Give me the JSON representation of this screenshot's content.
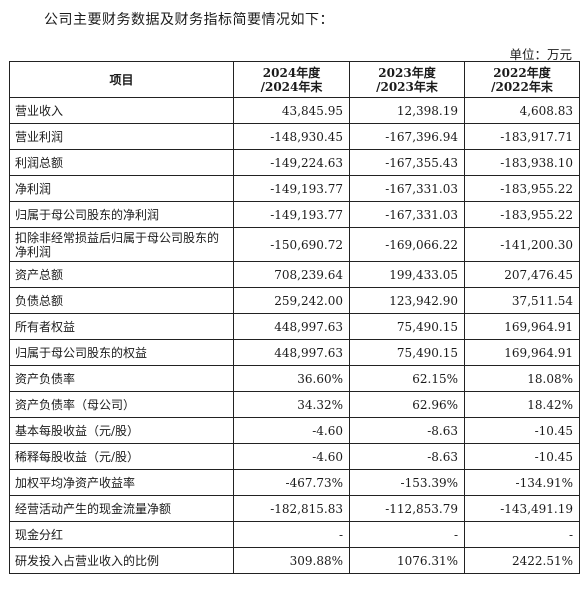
{
  "intro_text": "公司主要财务数据及财务指标简要情况如下：",
  "unit_label": "单位：万元",
  "table": {
    "headers": [
      {
        "line1": "项目",
        "line2": ""
      },
      {
        "line1": "2024年度",
        "line2": "/2024年末"
      },
      {
        "line1": "2023年度",
        "line2": "/2023年末"
      },
      {
        "line1": "2022年度",
        "line2": "/2022年末"
      }
    ],
    "rows": [
      {
        "name": "营业收入",
        "values": [
          "43,845.95",
          "12,398.19",
          "4,608.83"
        ]
      },
      {
        "name": "营业利润",
        "values": [
          "-148,930.45",
          "-167,396.94",
          "-183,917.71"
        ]
      },
      {
        "name": "利润总额",
        "values": [
          "-149,224.63",
          "-167,355.43",
          "-183,938.10"
        ]
      },
      {
        "name": "净利润",
        "values": [
          "-149,193.77",
          "-167,331.03",
          "-183,955.22"
        ]
      },
      {
        "name": "归属于母公司股东的净利润",
        "values": [
          "-149,193.77",
          "-167,331.03",
          "-183,955.22"
        ]
      },
      {
        "name": "扣除非经常损益后归属于母公司股东的净利润",
        "values": [
          "-150,690.72",
          "-169,066.22",
          "-141,200.30"
        ]
      },
      {
        "name": "资产总额",
        "values": [
          "708,239.64",
          "199,433.05",
          "207,476.45"
        ]
      },
      {
        "name": "负债总额",
        "values": [
          "259,242.00",
          "123,942.90",
          "37,511.54"
        ]
      },
      {
        "name": "所有者权益",
        "values": [
          "448,997.63",
          "75,490.15",
          "169,964.91"
        ]
      },
      {
        "name": "归属于母公司股东的权益",
        "values": [
          "448,997.63",
          "75,490.15",
          "169,964.91"
        ]
      },
      {
        "name": "资产负债率",
        "values": [
          "36.60%",
          "62.15%",
          "18.08%"
        ]
      },
      {
        "name": "资产负债率（母公司）",
        "values": [
          "34.32%",
          "62.96%",
          "18.42%"
        ]
      },
      {
        "name": "基本每股收益（元/股）",
        "values": [
          "-4.60",
          "-8.63",
          "-10.45"
        ]
      },
      {
        "name": "稀释每股收益（元/股）",
        "values": [
          "-4.60",
          "-8.63",
          "-10.45"
        ]
      },
      {
        "name": "加权平均净资产收益率",
        "values": [
          "-467.73%",
          "-153.39%",
          "-134.91%"
        ]
      },
      {
        "name": "经营活动产生的现金流量净额",
        "values": [
          "-182,815.83",
          "-112,853.79",
          "-143,491.19"
        ]
      },
      {
        "name": "现金分红",
        "values": [
          "-",
          "-",
          "-"
        ]
      },
      {
        "name": "研发投入占营业收入的比例",
        "values": [
          "309.88%",
          "1076.31%",
          "2422.51%"
        ]
      }
    ]
  }
}
